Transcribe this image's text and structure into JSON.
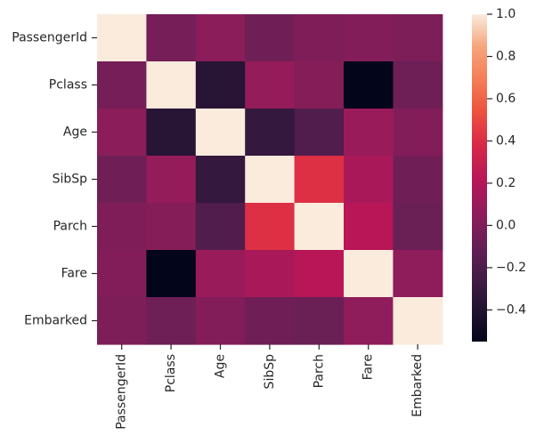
{
  "chart_data": {
    "type": "heatmap",
    "title": "",
    "xlabel": "",
    "ylabel": "",
    "row_labels": [
      "PassengerId",
      "Pclass",
      "Age",
      "SibSp",
      "Parch",
      "Fare",
      "Embarked"
    ],
    "col_labels": [
      "PassengerId",
      "Pclass",
      "Age",
      "SibSp",
      "Parch",
      "Fare",
      "Embarked"
    ],
    "values": [
      [
        1.0,
        -0.04,
        0.04,
        -0.06,
        -0.0,
        0.01,
        -0.01
      ],
      [
        -0.04,
        1.0,
        -0.37,
        0.08,
        0.02,
        -0.55,
        -0.07
      ],
      [
        0.04,
        -0.37,
        1.0,
        -0.31,
        -0.19,
        0.1,
        0.01
      ],
      [
        -0.06,
        0.08,
        -0.31,
        1.0,
        0.41,
        0.16,
        -0.06
      ],
      [
        -0.0,
        0.02,
        -0.19,
        0.41,
        1.0,
        0.22,
        -0.08
      ],
      [
        0.01,
        -0.55,
        0.1,
        0.16,
        0.22,
        1.0,
        0.06
      ],
      [
        -0.01,
        -0.07,
        0.01,
        -0.06,
        -0.08,
        0.06,
        1.0
      ]
    ],
    "vmin": -0.55,
    "vmax": 1.0,
    "colormap": "rocket",
    "colorbar_ticks": [
      {
        "value": 1.0,
        "label": "1.0"
      },
      {
        "value": 0.8,
        "label": "0.8"
      },
      {
        "value": 0.6,
        "label": "0.6"
      },
      {
        "value": 0.4,
        "label": "0.4"
      },
      {
        "value": 0.2,
        "label": "0.2"
      },
      {
        "value": 0.0,
        "label": "0.0"
      },
      {
        "value": -0.2,
        "label": "−0.2"
      },
      {
        "value": -0.4,
        "label": "−0.4"
      }
    ],
    "colormap_stops": [
      {
        "t": 0.0,
        "color": "#03051a"
      },
      {
        "t": 0.1,
        "color": "#221331"
      },
      {
        "t": 0.2,
        "color": "#451c47"
      },
      {
        "t": 0.3,
        "color": "#691f55"
      },
      {
        "t": 0.4,
        "color": "#921c5b"
      },
      {
        "t": 0.5,
        "color": "#b91657"
      },
      {
        "t": 0.6,
        "color": "#d92847"
      },
      {
        "t": 0.7,
        "color": "#ed503e"
      },
      {
        "t": 0.8,
        "color": "#f47d57"
      },
      {
        "t": 0.9,
        "color": "#f6a47c"
      },
      {
        "t": 1.0,
        "color": "#faebdd"
      }
    ],
    "grid": false,
    "legend": "colorbar-right"
  }
}
